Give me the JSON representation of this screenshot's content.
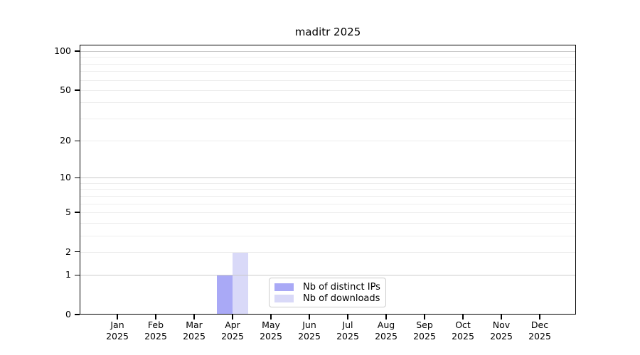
{
  "chart_data": {
    "type": "bar",
    "title": "maditr 2025",
    "xlabel": "",
    "ylabel": "",
    "categories": [
      "Jan 2025",
      "Feb 2025",
      "Mar 2025",
      "Apr 2025",
      "May 2025",
      "Jun 2025",
      "Jul 2025",
      "Aug 2025",
      "Sep 2025",
      "Oct 2025",
      "Nov 2025",
      "Dec 2025"
    ],
    "series": [
      {
        "name": "Nb of distinct IPs",
        "color": "#a9a9f6",
        "values": [
          0,
          0,
          0,
          1,
          0,
          0,
          0,
          0,
          0,
          0,
          0,
          0
        ]
      },
      {
        "name": "Nb of downloads",
        "color": "#d9d9f8",
        "values": [
          0,
          0,
          0,
          2,
          0,
          0,
          0,
          0,
          0,
          0,
          0,
          0
        ]
      }
    ],
    "y_scale": "log1p",
    "ylim": [
      0,
      112
    ],
    "yticks": [
      0,
      1,
      2,
      5,
      10,
      20,
      50,
      100
    ],
    "grid_major": [
      1,
      10,
      100
    ],
    "grid_minor": [
      2,
      3,
      4,
      5,
      6,
      7,
      8,
      9,
      20,
      30,
      40,
      50,
      60,
      70,
      80,
      90
    ],
    "grid": "on",
    "legend_position": "lower center inside plot",
    "colors": {
      "grid_major": "#c9c9c9",
      "grid_minor": "#ededed",
      "axis": "#000000",
      "legend_border": "#cccccc"
    }
  }
}
